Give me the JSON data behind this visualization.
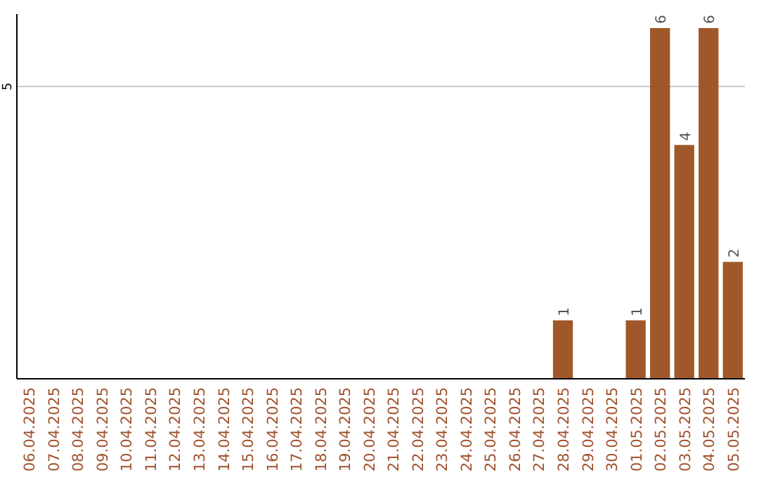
{
  "chart_data": {
    "type": "bar",
    "categories": [
      "06.04.2025",
      "07.04.2025",
      "08.04.2025",
      "09.04.2025",
      "10.04.2025",
      "11.04.2025",
      "12.04.2025",
      "13.04.2025",
      "14.04.2025",
      "15.04.2025",
      "16.04.2025",
      "17.04.2025",
      "18.04.2025",
      "19.04.2025",
      "20.04.2025",
      "21.04.2025",
      "22.04.2025",
      "23.04.2025",
      "24.04.2025",
      "25.04.2025",
      "26.04.2025",
      "27.04.2025",
      "28.04.2025",
      "29.04.2025",
      "30.04.2025",
      "01.05.2025",
      "02.05.2025",
      "03.05.2025",
      "04.05.2025",
      "05.05.2025"
    ],
    "values": [
      null,
      null,
      null,
      null,
      null,
      null,
      null,
      null,
      null,
      null,
      null,
      null,
      null,
      null,
      null,
      null,
      null,
      null,
      null,
      null,
      null,
      null,
      1,
      null,
      null,
      1,
      6,
      4,
      6,
      2
    ],
    "value_labels": [
      null,
      null,
      null,
      null,
      null,
      null,
      null,
      null,
      null,
      null,
      null,
      null,
      null,
      null,
      null,
      null,
      null,
      null,
      null,
      null,
      null,
      null,
      "1",
      null,
      null,
      "1",
      "6",
      "4",
      "6",
      "2"
    ],
    "color": "#a0582a",
    "ylim": [
      0,
      6
    ],
    "ref_lines": [
      {
        "axis": "y",
        "value": 5,
        "label": "5",
        "color": "#c8c8c8"
      }
    ]
  }
}
